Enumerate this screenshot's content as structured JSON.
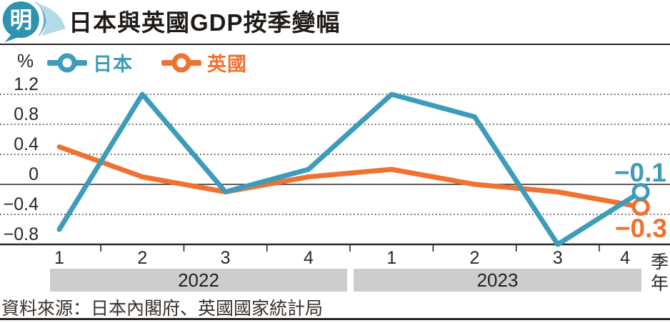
{
  "header": {
    "logo_text": "明",
    "title": "日本與英國GDP按季變幅"
  },
  "source": "資料來源：日本內閣府、英國國家統計局",
  "chart_data": {
    "type": "line",
    "title": "日本與英國GDP按季變幅",
    "unit": "%",
    "categories": [
      "2022Q1",
      "2022Q2",
      "2022Q3",
      "2022Q4",
      "2023Q1",
      "2023Q2",
      "2023Q3",
      "2023Q4"
    ],
    "quarters": [
      "1",
      "2",
      "3",
      "4",
      "1",
      "2",
      "3",
      "4"
    ],
    "year_groups": [
      {
        "label": "2022",
        "quarters": [
          "1",
          "2",
          "3",
          "4"
        ]
      },
      {
        "label": "2023",
        "quarters": [
          "1",
          "2",
          "3",
          "4"
        ]
      }
    ],
    "series": [
      {
        "name": "日本",
        "color": "#3E9CBB",
        "values": [
          -0.6,
          1.2,
          -0.1,
          0.2,
          1.2,
          0.9,
          -0.8,
          -0.1
        ],
        "end_label": "−0.1"
      },
      {
        "name": "英國",
        "color": "#EF7231",
        "values": [
          0.5,
          0.1,
          -0.1,
          0.1,
          0.2,
          0.0,
          -0.1,
          -0.3
        ],
        "end_label": "−0.3"
      }
    ],
    "yticks": [
      1.2,
      0.8,
      0.4,
      0,
      -0.4,
      -0.8
    ],
    "ylim": [
      -0.9,
      1.35
    ],
    "xlabel_quarter": "季",
    "xlabel_year": "年",
    "grid": "dotted-horizontal",
    "legend_position": "top-left",
    "marker": "open-circle-on-last-point"
  },
  "colors": {
    "japan": "#3E9CBB",
    "uk": "#EF7231",
    "band_gray": "#cdcdcd",
    "axis": "#2a2624",
    "logo_teal": "#2E93B0",
    "logo_light": "#B3DAE8"
  }
}
